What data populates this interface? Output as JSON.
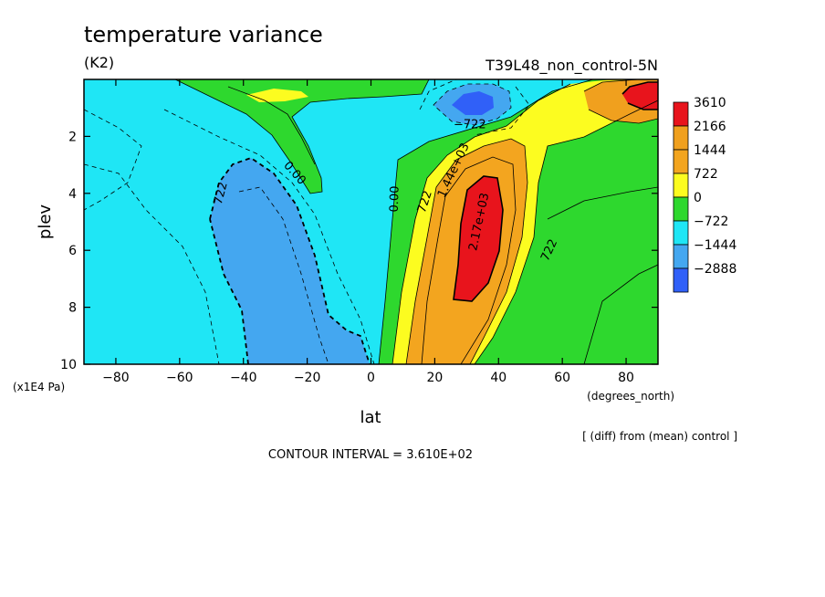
{
  "chart_data": {
    "type": "heatmap",
    "title": "temperature variance",
    "units": "(K2)",
    "experiment": "T39L48_non_control-5N",
    "xlabel": "lat",
    "xunits": "(degrees_north)",
    "ylabel": "plev",
    "yunits": "(x1E4 Pa)",
    "xlim": [
      -90,
      90
    ],
    "ylim": [
      10,
      0
    ],
    "x_ticks": [
      -80,
      -60,
      -40,
      -20,
      0,
      20,
      40,
      60,
      80
    ],
    "x_tick_labels": [
      "−80",
      "−60",
      "−40",
      "−20",
      "0",
      "20",
      "40",
      "60",
      "80"
    ],
    "y_ticks": [
      2,
      4,
      6,
      8,
      10
    ],
    "y_tick_labels": [
      "2",
      "4",
      "6",
      "8",
      "10"
    ],
    "diff_note": "[ (diff) from (mean) control ]",
    "contour_interval": "CONTOUR INTERVAL = 3.610E+02",
    "legend": {
      "placement": "right",
      "levels": [
        {
          "label": "3610",
          "color": "#e8141c"
        },
        {
          "label": "2166",
          "color": "#f0a01e"
        },
        {
          "label": "1444",
          "color": "#f3a51f"
        },
        {
          "label": "722",
          "color": "#fcfc20"
        },
        {
          "label": "0",
          "color": "#2ed82e"
        },
        {
          "label": "−722",
          "color": "#1fe6f5"
        },
        {
          "label": "−1444",
          "color": "#44a7f0"
        },
        {
          "label": "−2888",
          "color": "#3060f8"
        }
      ]
    },
    "contour_labels": [
      {
        "text": "722",
        "x": -47,
        "y": 4.0,
        "angle": -75
      },
      {
        "text": "0.00",
        "x": -24,
        "y": 3.3,
        "angle": 48
      },
      {
        "text": "0.00",
        "x": 7.5,
        "y": 4.2,
        "angle": -88
      },
      {
        "text": "722",
        "x": 17,
        "y": 4.3,
        "angle": -72
      },
      {
        "text": "1.44e+03",
        "x": 26,
        "y": 3.2,
        "angle": -65
      },
      {
        "text": "−722",
        "x": 31,
        "y": 1.6,
        "angle": 0
      },
      {
        "text": "2.17e+03",
        "x": 34,
        "y": 5.0,
        "angle": -78
      },
      {
        "text": "722",
        "x": 56,
        "y": 6.0,
        "angle": -65
      }
    ]
  }
}
